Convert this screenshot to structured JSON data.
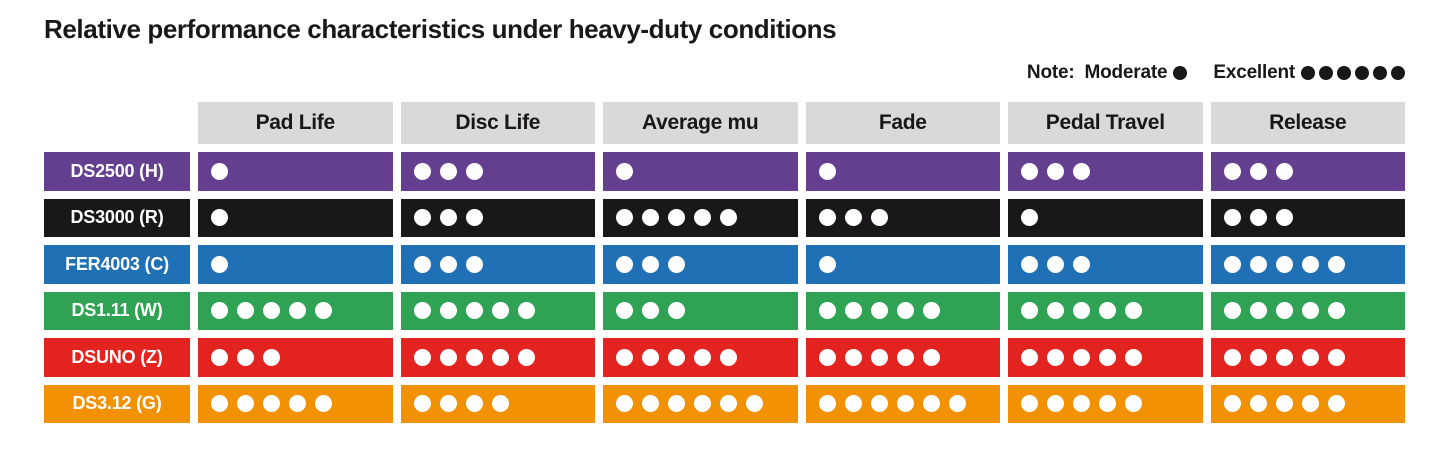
{
  "title": "Relative performance characteristics under heavy-duty conditions",
  "note": {
    "label": "Note:",
    "moderate_label": "Moderate",
    "moderate_dots": 1,
    "excellent_label": "Excellent",
    "excellent_dots": 6
  },
  "colors": {
    "text": "#1a171b",
    "header_background": "#d9d9d9",
    "dot_cell": "#ffffff",
    "dot_legend": "#1a171b",
    "row_colors": [
      "#643e8f",
      "#1a171b",
      "#1f70b4",
      "#2fa254",
      "#e32320",
      "#f29104"
    ]
  },
  "chart_data": {
    "type": "table",
    "title": "Relative performance characteristics under heavy-duty conditions",
    "scale": {
      "min": 1,
      "min_label": "Moderate",
      "max": 6,
      "max_label": "Excellent",
      "unit": "dots"
    },
    "columns": [
      "Pad Life",
      "Disc Life",
      "Average mu",
      "Fade",
      "Pedal Travel",
      "Release"
    ],
    "rows": [
      {
        "label": "DS2500 (H)",
        "color": "#643e8f",
        "values": [
          1,
          3,
          1,
          1,
          3,
          3
        ]
      },
      {
        "label": "DS3000 (R)",
        "color": "#1a171b",
        "values": [
          1,
          3,
          5,
          3,
          1,
          3
        ]
      },
      {
        "label": "FER4003 (C)",
        "color": "#1f70b4",
        "values": [
          1,
          3,
          3,
          1,
          3,
          5
        ]
      },
      {
        "label": "DS1.11 (W)",
        "color": "#2fa254",
        "values": [
          5,
          5,
          3,
          5,
          5,
          5
        ]
      },
      {
        "label": "DSUNO (Z)",
        "color": "#e32320",
        "values": [
          3,
          5,
          5,
          5,
          5,
          5
        ]
      },
      {
        "label": "DS3.12 (G)",
        "color": "#f29104",
        "values": [
          5,
          4,
          6,
          6,
          5,
          5
        ]
      }
    ]
  }
}
